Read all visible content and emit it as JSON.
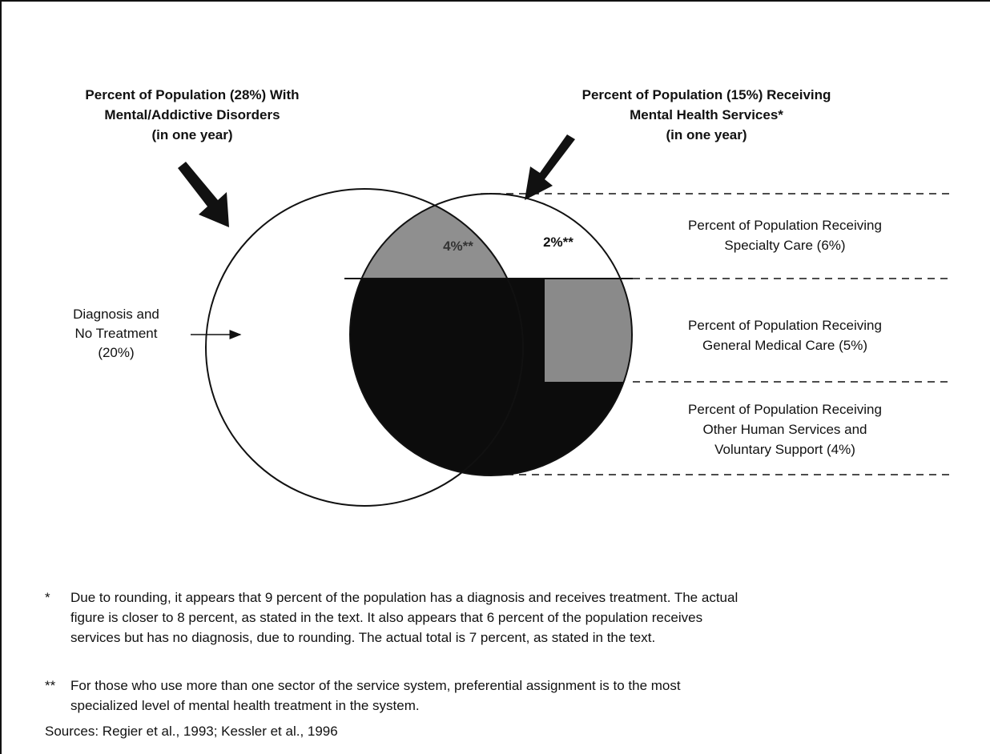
{
  "diagram": {
    "left_title": [
      "Percent of Population (28%) With",
      "Mental/Addictive Disorders",
      "(in one year)"
    ],
    "right_title": [
      "Percent of Population (15%) Receiving",
      "Mental Health Services*",
      "(in one year)"
    ],
    "no_treatment": [
      "Diagnosis and",
      "No Treatment",
      "(20%)"
    ],
    "region_labels": [
      "4%**",
      "2%**"
    ],
    "bands": [
      [
        "Percent of Population Receiving",
        "Specialty Care (6%)"
      ],
      [
        "Percent of Population Receiving",
        "General Medical Care (5%)"
      ],
      [
        "Percent of Population Receiving",
        "Other Human Services and",
        "Voluntary Support (4%)"
      ]
    ]
  },
  "footnotes": [
    {
      "mark": "*",
      "lines": [
        "Due to rounding, it appears that 9 percent of the population has a diagnosis and receives treatment. The actual",
        "figure is closer to 8 percent, as stated in the text. It also appears that 6 percent of the population receives",
        "services but has no diagnosis, due to rounding. The actual total is 7 percent, as stated in the text."
      ]
    },
    {
      "mark": "**",
      "lines": [
        "For those who use more than one sector of the service system, preferential assignment is to the most",
        "specialized level of mental health treatment in the system."
      ]
    }
  ],
  "sources": "Sources:  Regier et al., 1993; Kessler et al., 1996"
}
